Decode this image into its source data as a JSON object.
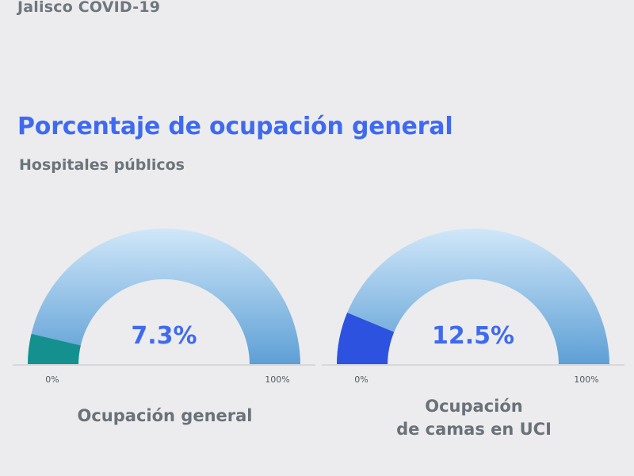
{
  "header": {
    "text": "Jalisco COVID-19"
  },
  "title": "Porcentaje de ocupación general",
  "subtitle": "Hospitales públicos",
  "colors": {
    "background": "#ececee",
    "title": "#3f6af0",
    "track_light": "#cfe6f8",
    "track_dark": "#5b9fd6",
    "value_text": "#3f6af0",
    "tick_text": "#555a60",
    "label_text": "#6a7178",
    "baseline": "#d8dadd"
  },
  "chart_data": [
    {
      "type": "gauge",
      "value": 7.3,
      "value_label": "7.3%",
      "range": [
        0,
        100
      ],
      "min_label": "0%",
      "max_label": "100%",
      "fill_color": "#14918f",
      "label_lines": [
        "Ocupación general"
      ]
    },
    {
      "type": "gauge",
      "value": 12.5,
      "value_label": "12.5%",
      "range": [
        0,
        100
      ],
      "min_label": "0%",
      "max_label": "100%",
      "fill_color": "#2d52e0",
      "label_lines": [
        "Ocupación",
        "de camas en UCI"
      ]
    }
  ]
}
